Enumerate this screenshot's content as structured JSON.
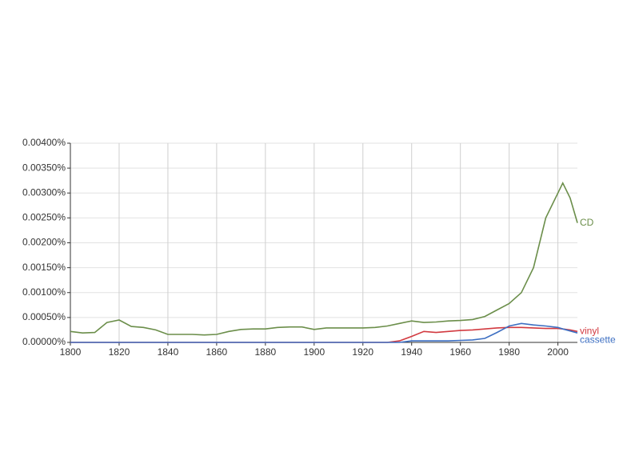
{
  "chart_data": {
    "type": "line",
    "x": [
      1800,
      1805,
      1810,
      1815,
      1820,
      1825,
      1830,
      1835,
      1840,
      1845,
      1850,
      1855,
      1860,
      1865,
      1870,
      1875,
      1880,
      1885,
      1890,
      1895,
      1900,
      1905,
      1910,
      1915,
      1920,
      1925,
      1930,
      1935,
      1940,
      1945,
      1950,
      1955,
      1960,
      1965,
      1970,
      1975,
      1980,
      1985,
      1990,
      1995,
      2000,
      2002,
      2005,
      2008
    ],
    "series": [
      {
        "name": "CD",
        "color": "#6b8e4a",
        "values": [
          0.00022,
          0.00019,
          0.0002,
          0.0004,
          0.00045,
          0.00032,
          0.0003,
          0.00025,
          0.00016,
          0.00016,
          0.00016,
          0.00015,
          0.00016,
          0.00022,
          0.00026,
          0.00027,
          0.00027,
          0.0003,
          0.00031,
          0.00031,
          0.00026,
          0.00029,
          0.00029,
          0.00029,
          0.00029,
          0.0003,
          0.00033,
          0.00038,
          0.00043,
          0.0004,
          0.00041,
          0.00043,
          0.00044,
          0.00046,
          0.00052,
          0.00065,
          0.00078,
          0.001,
          0.0015,
          0.0025,
          0.003,
          0.0032,
          0.0029,
          0.0024
        ]
      },
      {
        "name": "vinyl",
        "color": "#d23a40",
        "values": [
          0,
          0,
          0,
          0,
          0,
          0,
          0,
          0,
          0,
          0,
          0,
          0,
          0,
          0,
          0,
          0,
          0,
          0,
          0,
          0,
          0,
          0,
          0,
          0,
          0,
          0,
          0,
          3e-05,
          0.00012,
          0.00022,
          0.0002,
          0.00022,
          0.00024,
          0.00025,
          0.00027,
          0.00029,
          0.0003,
          0.0003,
          0.00029,
          0.00028,
          0.00028,
          0.00027,
          0.00025,
          0.00022
        ]
      },
      {
        "name": "cassette",
        "color": "#3d6fc2",
        "values": [
          0,
          0,
          0,
          0,
          0,
          0,
          0,
          0,
          0,
          0,
          0,
          0,
          0,
          0,
          0,
          0,
          0,
          0,
          0,
          0,
          0,
          0,
          0,
          0,
          0,
          0,
          0,
          0,
          3e-05,
          3e-05,
          3e-05,
          3e-05,
          4e-05,
          5e-05,
          8e-05,
          0.0002,
          0.00033,
          0.00038,
          0.00035,
          0.00033,
          0.0003,
          0.00027,
          0.00023,
          0.00019
        ]
      }
    ],
    "xlim": [
      1800,
      2008
    ],
    "xticks": [
      1800,
      1820,
      1840,
      1860,
      1880,
      1900,
      1920,
      1940,
      1960,
      1980,
      2000
    ],
    "ylim": [
      0,
      0.004
    ],
    "yticks": [
      {
        "value": 0,
        "label": "0.00000%"
      },
      {
        "value": 0.0005,
        "label": "0.00050%"
      },
      {
        "value": 0.001,
        "label": "0.00100%"
      },
      {
        "value": 0.0015,
        "label": "0.00150%"
      },
      {
        "value": 0.002,
        "label": "0.00200%"
      },
      {
        "value": 0.0025,
        "label": "0.00250%"
      },
      {
        "value": 0.003,
        "label": "0.00300%"
      },
      {
        "value": 0.0035,
        "label": "0.00350%"
      },
      {
        "value": 0.004,
        "label": "0.00400%"
      }
    ],
    "grid": true
  }
}
